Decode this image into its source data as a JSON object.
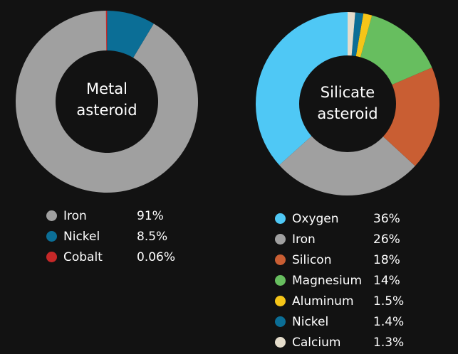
{
  "chart_data": [
    {
      "type": "pie",
      "center_label_lines": [
        "Metal",
        "asteroid"
      ],
      "slices": [
        {
          "label": "Iron",
          "value_text": "91%",
          "value": 91,
          "color": "#a0a0a0"
        },
        {
          "label": "Nickel",
          "value_text": "8.5%",
          "value": 8.5,
          "color": "#0b6e96"
        },
        {
          "label": "Cobalt",
          "value_text": "0.06%",
          "value": 0.06,
          "color": "#c62828"
        }
      ]
    },
    {
      "type": "pie",
      "center_label_lines": [
        "Silicate",
        "asteroid"
      ],
      "slices": [
        {
          "label": "Oxygen",
          "value_text": "36%",
          "value": 36,
          "color": "#4fc8f5"
        },
        {
          "label": "Iron",
          "value_text": "26%",
          "value": 26,
          "color": "#a0a0a0"
        },
        {
          "label": "Silicon",
          "value_text": "18%",
          "value": 18,
          "color": "#c95e33"
        },
        {
          "label": "Magnesium",
          "value_text": "14%",
          "value": 14,
          "color": "#67be5f"
        },
        {
          "label": "Aluminum",
          "value_text": "1.5%",
          "value": 1.5,
          "color": "#f5c518"
        },
        {
          "label": "Nickel",
          "value_text": "1.4%",
          "value": 1.4,
          "color": "#0b6e96"
        },
        {
          "label": "Calcium",
          "value_text": "1.3%",
          "value": 1.3,
          "color": "#e4dccb"
        }
      ]
    }
  ]
}
